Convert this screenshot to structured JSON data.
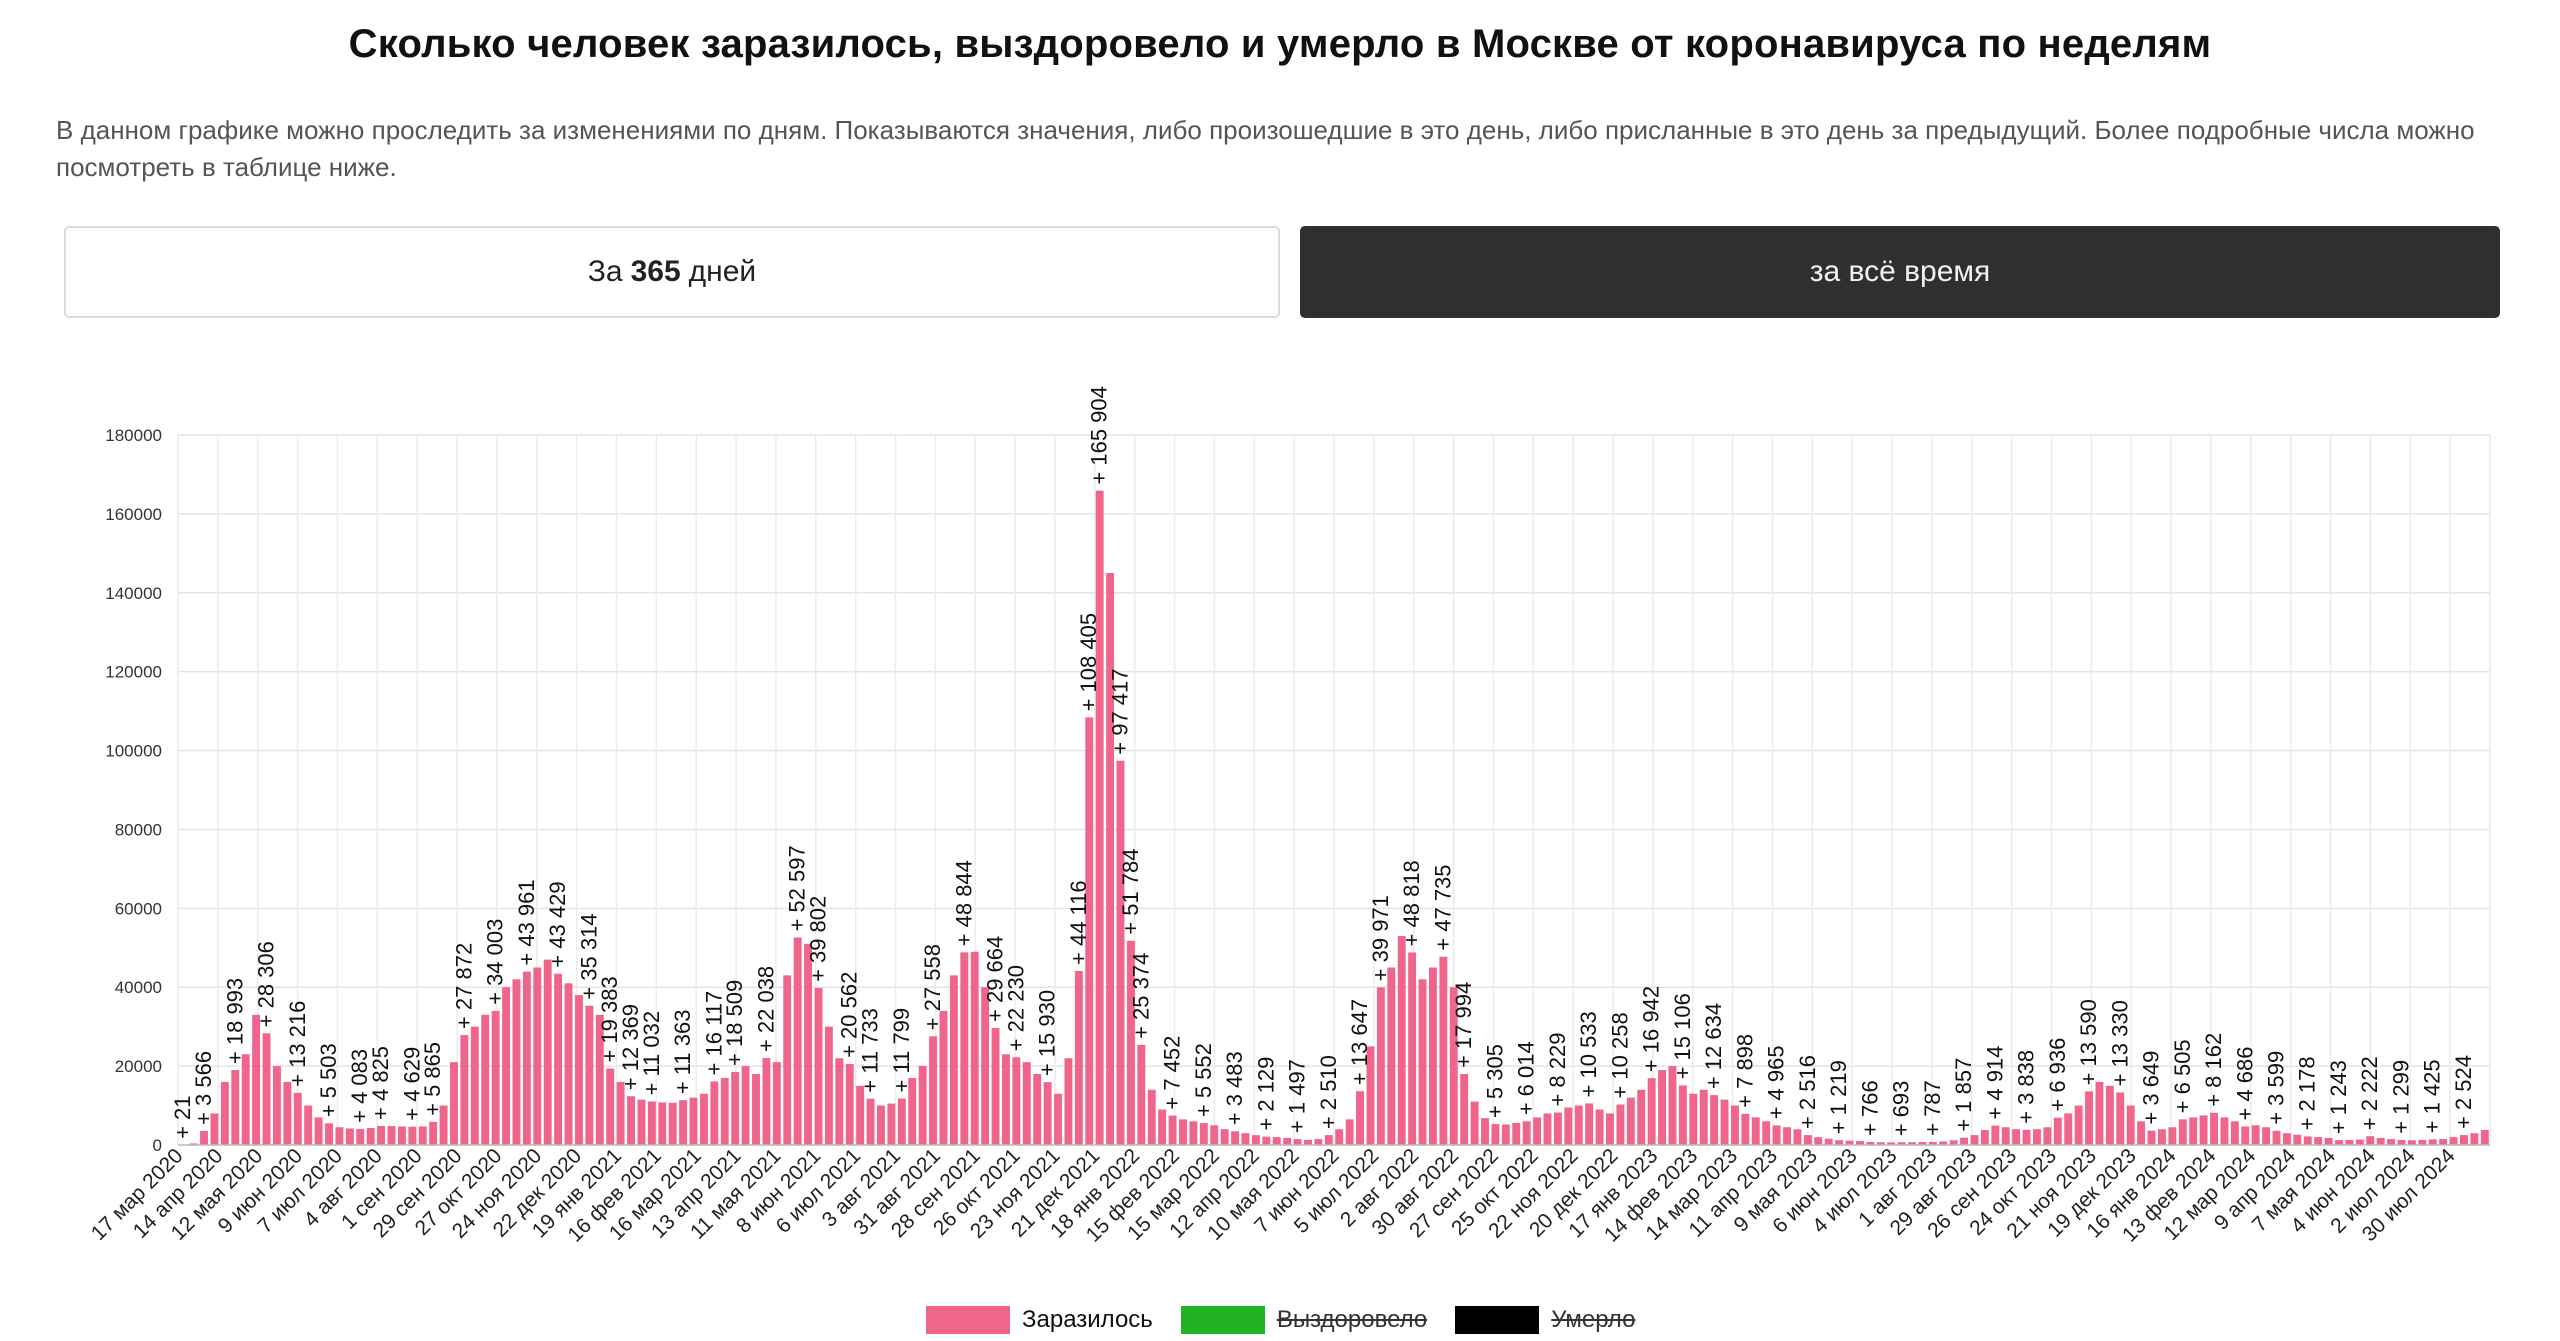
{
  "page": {
    "title": "Сколько человек заразилось, выздоровело и умерло в Москве от коронавируса по неделям",
    "description": "В данном графике можно проследить за изменениями по дням. Показываются значения, либо произошедшие в это день, либо присланные в это день за предыдущий. Более подробные числа можно посмотреть в таблице ниже.",
    "buttons": {
      "period_prefix": "За",
      "period_number": "365",
      "period_unit": "дней",
      "all_time": "за всё время"
    }
  },
  "legend": [
    {
      "label": "Заразилось",
      "color": "#f0658c",
      "active": true
    },
    {
      "label": "Выздоровело",
      "color": "#22b322",
      "active": false
    },
    {
      "label": "Умерло",
      "color": "#000000",
      "active": false
    }
  ],
  "chart_data": {
    "type": "bar",
    "title": "Сколько человек заразилось, выздоровело и умерло в Москве от коронавируса по неделям",
    "xlabel": "",
    "ylabel": "",
    "ylim": [
      0,
      180000
    ],
    "yticks": [
      0,
      20000,
      40000,
      60000,
      80000,
      100000,
      120000,
      140000,
      160000,
      180000
    ],
    "grid": true,
    "legend_position": "bottom",
    "x_tick_labels": [
      "17 мар 2020",
      "14 апр 2020",
      "12 мая 2020",
      "9 июн 2020",
      "7 июл 2020",
      "4 авг 2020",
      "1 сен 2020",
      "29 сен 2020",
      "27 окт 2020",
      "24 ноя 2020",
      "22 дек 2020",
      "19 янв 2021",
      "16 фев 2021",
      "16 мар 2021",
      "13 апр 2021",
      "11 мая 2021",
      "8 июн 2021",
      "6 июл 2021",
      "3 авг 2021",
      "31 авг 2021",
      "28 сен 2021",
      "26 окт 2021",
      "23 ноя 2021",
      "21 дек 2021",
      "18 янв 2022",
      "15 фев 2022",
      "15 мар 2022",
      "12 апр 2022",
      "10 мая 2022",
      "7 июн 2022",
      "5 июл 2022",
      "2 авг 2022",
      "30 авг 2022",
      "27 сен 2022",
      "25 окт 2022",
      "22 ноя 2022",
      "20 дек 2022",
      "17 янв 2023",
      "14 фев 2023",
      "14 мар 2023",
      "11 апр 2023",
      "9 мая 2023",
      "6 июн 2023",
      "4 июл 2023",
      "1 авг 2023",
      "29 авг 2023",
      "26 сен 2023",
      "24 окт 2023",
      "21 ноя 2023",
      "19 дек 2023",
      "16 янв 2024",
      "13 фев 2024",
      "12 мар 2024",
      "9 апр 2024",
      "7 мая 2024",
      "4 июн 2024",
      "2 июл 2024",
      "30 июл 2024"
    ],
    "series": [
      {
        "name": "Заразилось",
        "color": "#f0658c",
        "values": [
          21,
          400,
          3566,
          8000,
          16000,
          18993,
          23000,
          33000,
          28306,
          20000,
          16000,
          13216,
          10000,
          7000,
          5503,
          4500,
          4200,
          4083,
          4300,
          4825,
          4800,
          4700,
          4629,
          4700,
          5865,
          10000,
          21000,
          27872,
          30000,
          33000,
          34003,
          40000,
          42000,
          43961,
          45000,
          47000,
          43429,
          41000,
          38000,
          35314,
          33000,
          19383,
          16000,
          12369,
          11500,
          11032,
          10800,
          10700,
          11363,
          12000,
          13000,
          16117,
          17000,
          18509,
          20000,
          18000,
          22038,
          21000,
          43000,
          52597,
          51000,
          39802,
          30000,
          22000,
          20562,
          15000,
          11733,
          10000,
          10500,
          11799,
          17000,
          20000,
          27558,
          34000,
          43000,
          48844,
          49000,
          40000,
          29664,
          23000,
          22230,
          21000,
          18000,
          15930,
          13000,
          22000,
          44116,
          108405,
          165904,
          145000,
          97417,
          51784,
          25374,
          14000,
          9000,
          7452,
          6500,
          6000,
          5552,
          5000,
          4000,
          3483,
          3000,
          2500,
          2129,
          2000,
          1800,
          1497,
          1300,
          1500,
          2510,
          4000,
          6500,
          13647,
          25000,
          39971,
          45000,
          53000,
          48818,
          42000,
          45000,
          47735,
          40000,
          17994,
          11000,
          6800,
          5305,
          5200,
          5600,
          6014,
          7000,
          8000,
          8229,
          9500,
          10000,
          10533,
          9000,
          8000,
          10258,
          12000,
          14000,
          16942,
          19000,
          20000,
          15106,
          13000,
          14000,
          12634,
          11500,
          10000,
          7898,
          7000,
          6000,
          4965,
          4500,
          4000,
          2516,
          2000,
          1600,
          1219,
          1100,
          1000,
          766,
          700,
          650,
          693,
          700,
          750,
          787,
          900,
          1200,
          1857,
          2500,
          3800,
          4914,
          4500,
          4000,
          3838,
          4000,
          4500,
          6936,
          8000,
          10000,
          13590,
          16000,
          15000,
          13330,
          10000,
          6000,
          3649,
          4000,
          4500,
          6505,
          7000,
          7500,
          8162,
          7000,
          6000,
          4686,
          5000,
          4500,
          3599,
          3000,
          2600,
          2178,
          2000,
          1800,
          1243,
          1300,
          1400,
          2222,
          1800,
          1500,
          1299,
          1200,
          1300,
          1425,
          1500,
          2000,
          2524,
          3000,
          3800
        ]
      }
    ],
    "data_labels": [
      {
        "index": 0,
        "text": "+ 21"
      },
      {
        "index": 2,
        "text": "+ 3 566"
      },
      {
        "index": 5,
        "text": "+ 18 993"
      },
      {
        "index": 8,
        "text": "+ 28 306"
      },
      {
        "index": 11,
        "text": "+ 13 216"
      },
      {
        "index": 14,
        "text": "+ 5 503"
      },
      {
        "index": 17,
        "text": "+ 4 083"
      },
      {
        "index": 19,
        "text": "+ 4 825"
      },
      {
        "index": 22,
        "text": "+ 4 629"
      },
      {
        "index": 24,
        "text": "+ 5 865"
      },
      {
        "index": 27,
        "text": "+ 27 872"
      },
      {
        "index": 30,
        "text": "+ 34 003"
      },
      {
        "index": 33,
        "text": "+ 43 961"
      },
      {
        "index": 36,
        "text": "+ 43 429"
      },
      {
        "index": 39,
        "text": "+ 35 314"
      },
      {
        "index": 41,
        "text": "+ 19 383"
      },
      {
        "index": 43,
        "text": "+ 12 369"
      },
      {
        "index": 45,
        "text": "+ 11 032"
      },
      {
        "index": 48,
        "text": "+ 11 363"
      },
      {
        "index": 51,
        "text": "+ 16 117"
      },
      {
        "index": 53,
        "text": "+ 18 509"
      },
      {
        "index": 56,
        "text": "+ 22 038"
      },
      {
        "index": 59,
        "text": "+ 52 597"
      },
      {
        "index": 61,
        "text": "+ 39 802"
      },
      {
        "index": 64,
        "text": "+ 20 562"
      },
      {
        "index": 66,
        "text": "+ 11 733"
      },
      {
        "index": 69,
        "text": "+ 11 799"
      },
      {
        "index": 72,
        "text": "+ 27 558"
      },
      {
        "index": 75,
        "text": "+ 48 844"
      },
      {
        "index": 78,
        "text": "+ 29 664"
      },
      {
        "index": 80,
        "text": "+ 22 230"
      },
      {
        "index": 83,
        "text": "+ 15 930"
      },
      {
        "index": 86,
        "text": "+ 44 116"
      },
      {
        "index": 87,
        "text": "+ 108 405"
      },
      {
        "index": 88,
        "text": "+ 165 904"
      },
      {
        "index": 90,
        "text": "+ 97 417"
      },
      {
        "index": 91,
        "text": "+ 51 784"
      },
      {
        "index": 92,
        "text": "+ 25 374"
      },
      {
        "index": 95,
        "text": "+ 7 452"
      },
      {
        "index": 98,
        "text": "+ 5 552"
      },
      {
        "index": 101,
        "text": "+ 3 483"
      },
      {
        "index": 104,
        "text": "+ 2 129"
      },
      {
        "index": 107,
        "text": "+ 1 497"
      },
      {
        "index": 110,
        "text": "+ 2 510"
      },
      {
        "index": 113,
        "text": "+ 13 647"
      },
      {
        "index": 115,
        "text": "+ 39 971"
      },
      {
        "index": 118,
        "text": "+ 48 818"
      },
      {
        "index": 121,
        "text": "+ 47 735"
      },
      {
        "index": 123,
        "text": "+ 17 994"
      },
      {
        "index": 126,
        "text": "+ 5 305"
      },
      {
        "index": 129,
        "text": "+ 6 014"
      },
      {
        "index": 132,
        "text": "+ 8 229"
      },
      {
        "index": 135,
        "text": "+ 10 533"
      },
      {
        "index": 138,
        "text": "+ 10 258"
      },
      {
        "index": 141,
        "text": "+ 16 942"
      },
      {
        "index": 144,
        "text": "+ 15 106"
      },
      {
        "index": 147,
        "text": "+ 12 634"
      },
      {
        "index": 150,
        "text": "+ 7 898"
      },
      {
        "index": 153,
        "text": "+ 4 965"
      },
      {
        "index": 156,
        "text": "+ 2 516"
      },
      {
        "index": 159,
        "text": "+ 1 219"
      },
      {
        "index": 162,
        "text": "+ 766"
      },
      {
        "index": 165,
        "text": "+ 693"
      },
      {
        "index": 168,
        "text": "+ 787"
      },
      {
        "index": 171,
        "text": "+ 1 857"
      },
      {
        "index": 174,
        "text": "+ 4 914"
      },
      {
        "index": 177,
        "text": "+ 3 838"
      },
      {
        "index": 180,
        "text": "+ 6 936"
      },
      {
        "index": 183,
        "text": "+ 13 590"
      },
      {
        "index": 186,
        "text": "+ 13 330"
      },
      {
        "index": 189,
        "text": "+ 3 649"
      },
      {
        "index": 192,
        "text": "+ 6 505"
      },
      {
        "index": 195,
        "text": "+ 8 162"
      },
      {
        "index": 198,
        "text": "+ 4 686"
      },
      {
        "index": 201,
        "text": "+ 3 599"
      },
      {
        "index": 204,
        "text": "+ 2 178"
      },
      {
        "index": 207,
        "text": "+ 1 243"
      },
      {
        "index": 210,
        "text": "+ 2 222"
      },
      {
        "index": 213,
        "text": "+ 1 299"
      },
      {
        "index": 216,
        "text": "+ 1 425"
      },
      {
        "index": 219,
        "text": "+ 2 524"
      }
    ]
  }
}
